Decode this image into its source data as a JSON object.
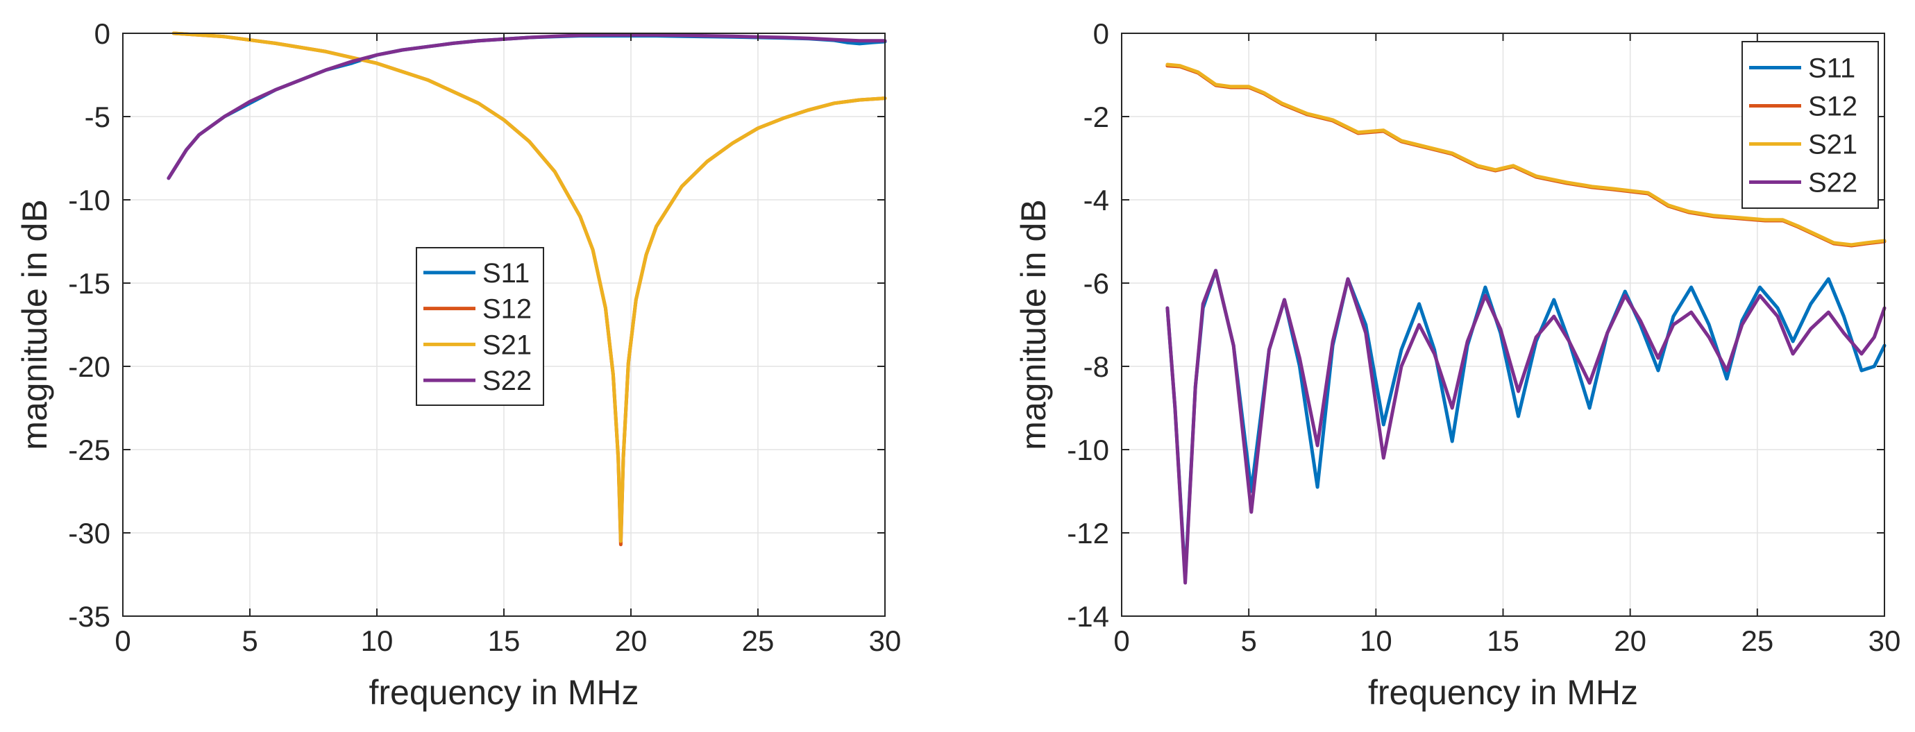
{
  "chart_data": [
    {
      "type": "line",
      "id": "left",
      "xlabel": "frequency in MHz",
      "ylabel": "magnitude in dB",
      "xlim": [
        0,
        30
      ],
      "ylim": [
        -35,
        0
      ],
      "xticks": [
        0,
        5,
        10,
        15,
        20,
        25,
        30
      ],
      "yticks": [
        0,
        -5,
        -10,
        -15,
        -20,
        -25,
        -30,
        -35
      ],
      "grid": true,
      "legend_position": "center",
      "series": [
        {
          "name": "S11",
          "color": "#0072BD",
          "x": [
            1.8,
            2.5,
            3,
            4,
            5,
            6,
            7,
            8,
            9,
            10,
            11,
            12,
            13,
            14,
            15,
            16,
            17,
            18,
            19,
            20,
            21,
            22,
            23,
            24,
            25,
            26,
            27,
            28,
            28.5,
            29,
            29.5,
            30
          ],
          "y": [
            -8.7,
            -7.0,
            -6.1,
            -5.0,
            -4.2,
            -3.4,
            -2.8,
            -2.2,
            -1.8,
            -1.3,
            -1.0,
            -0.8,
            -0.6,
            -0.45,
            -0.35,
            -0.25,
            -0.2,
            -0.15,
            -0.15,
            -0.15,
            -0.15,
            -0.18,
            -0.2,
            -0.22,
            -0.25,
            -0.28,
            -0.32,
            -0.42,
            -0.55,
            -0.62,
            -0.55,
            -0.5
          ]
        },
        {
          "name": "S12",
          "color": "#D95319",
          "x": [
            2,
            4,
            6,
            8,
            10,
            12,
            14,
            15,
            16,
            17,
            18,
            18.5,
            19,
            19.3,
            19.5,
            19.6,
            19.7,
            19.9,
            20.2,
            20.6,
            21,
            22,
            23,
            24,
            25,
            26,
            27,
            28,
            29,
            30
          ],
          "y": [
            0,
            -0.2,
            -0.6,
            -1.1,
            -1.8,
            -2.8,
            -4.2,
            -5.2,
            -6.5,
            -8.3,
            -11.0,
            -13.0,
            -16.5,
            -20.5,
            -25.5,
            -30.7,
            -25.5,
            -19.8,
            -16.0,
            -13.3,
            -11.6,
            -9.2,
            -7.7,
            -6.6,
            -5.7,
            -5.1,
            -4.6,
            -4.2,
            -4.0,
            -3.9
          ]
        },
        {
          "name": "S21",
          "color": "#EDB120",
          "x": [
            2,
            4,
            6,
            8,
            10,
            12,
            14,
            15,
            16,
            17,
            18,
            18.5,
            19,
            19.3,
            19.5,
            19.6,
            19.7,
            19.9,
            20.2,
            20.6,
            21,
            22,
            23,
            24,
            25,
            26,
            27,
            28,
            29,
            30
          ],
          "y": [
            0,
            -0.2,
            -0.6,
            -1.1,
            -1.8,
            -2.8,
            -4.2,
            -5.2,
            -6.5,
            -8.3,
            -11.0,
            -13.0,
            -16.5,
            -20.5,
            -25.5,
            -30.5,
            -25.5,
            -19.8,
            -16.0,
            -13.3,
            -11.6,
            -9.2,
            -7.7,
            -6.6,
            -5.7,
            -5.1,
            -4.6,
            -4.2,
            -4.0,
            -3.9
          ]
        },
        {
          "name": "S22",
          "color": "#7E2F8E",
          "x": [
            1.8,
            2.5,
            3,
            4,
            5,
            6,
            7,
            8,
            9,
            10,
            11,
            12,
            13,
            14,
            15,
            16,
            17,
            18,
            19,
            20,
            21,
            22,
            23,
            24,
            25,
            26,
            27,
            28,
            29,
            30
          ],
          "y": [
            -8.7,
            -7.0,
            -6.1,
            -5.0,
            -4.1,
            -3.4,
            -2.8,
            -2.2,
            -1.7,
            -1.3,
            -1.0,
            -0.8,
            -0.6,
            -0.45,
            -0.35,
            -0.25,
            -0.18,
            -0.12,
            -0.1,
            -0.1,
            -0.1,
            -0.12,
            -0.15,
            -0.18,
            -0.22,
            -0.25,
            -0.3,
            -0.38,
            -0.45,
            -0.45
          ]
        }
      ]
    },
    {
      "type": "line",
      "id": "right",
      "xlabel": "frequency in MHz",
      "ylabel": "magnitude in dB",
      "xlim": [
        0,
        30
      ],
      "ylim": [
        -14,
        0
      ],
      "xticks": [
        0,
        5,
        10,
        15,
        20,
        25,
        30
      ],
      "yticks": [
        0,
        -2,
        -4,
        -6,
        -8,
        -10,
        -12,
        -14
      ],
      "grid": true,
      "legend_position": "top-right",
      "series": [
        {
          "name": "S11",
          "color": "#0072BD",
          "x": [
            1.8,
            2.1,
            2.5,
            2.9,
            3.2,
            3.7,
            4.4,
            5.1,
            5.8,
            6.4,
            7.0,
            7.7,
            8.3,
            8.9,
            9.6,
            10.3,
            11.0,
            11.7,
            12.3,
            13.0,
            13.6,
            14.3,
            14.9,
            15.6,
            16.3,
            17.0,
            17.6,
            18.4,
            19.1,
            19.8,
            20.4,
            21.1,
            21.7,
            22.4,
            23.1,
            23.8,
            24.4,
            25.1,
            25.8,
            26.4,
            27.1,
            27.8,
            28.4,
            29.1,
            29.6,
            30
          ],
          "y": [
            -6.6,
            -9.0,
            -13.1,
            -8.5,
            -6.6,
            -5.7,
            -7.5,
            -11.0,
            -7.6,
            -6.4,
            -8.0,
            -10.9,
            -7.5,
            -5.9,
            -7.0,
            -9.4,
            -7.6,
            -6.5,
            -7.6,
            -9.8,
            -7.5,
            -6.1,
            -7.2,
            -9.2,
            -7.4,
            -6.4,
            -7.4,
            -9.0,
            -7.2,
            -6.2,
            -7.0,
            -8.1,
            -6.8,
            -6.1,
            -7.0,
            -8.3,
            -6.9,
            -6.1,
            -6.6,
            -7.4,
            -6.5,
            -5.9,
            -6.8,
            -8.1,
            -8.0,
            -7.5
          ]
        },
        {
          "name": "S12",
          "color": "#D95319",
          "x": [
            1.8,
            2.3,
            3,
            3.7,
            4.3,
            5.0,
            5.6,
            6.3,
            7.3,
            8.3,
            9.3,
            10.3,
            11.0,
            12.0,
            13.0,
            14.0,
            14.7,
            15.4,
            16.3,
            17.5,
            18.5,
            19.3,
            20.0,
            20.7,
            21.5,
            22.3,
            23.3,
            24.3,
            25.3,
            26.0,
            26.6,
            27.3,
            28.0,
            28.7,
            29.3,
            30
          ],
          "y": [
            -0.78,
            -0.8,
            -0.95,
            -1.25,
            -1.3,
            -1.3,
            -1.45,
            -1.7,
            -1.95,
            -2.1,
            -2.4,
            -2.35,
            -2.6,
            -2.75,
            -2.9,
            -3.2,
            -3.3,
            -3.2,
            -3.45,
            -3.6,
            -3.7,
            -3.75,
            -3.8,
            -3.85,
            -4.15,
            -4.3,
            -4.4,
            -4.45,
            -4.5,
            -4.5,
            -4.65,
            -4.85,
            -5.05,
            -5.1,
            -5.05,
            -5.0
          ]
        },
        {
          "name": "S21",
          "color": "#EDB120",
          "x": [
            1.8,
            2.3,
            3,
            3.7,
            4.3,
            5.0,
            5.6,
            6.3,
            7.3,
            8.3,
            9.3,
            10.3,
            11.0,
            12.0,
            13.0,
            14.0,
            14.7,
            15.4,
            16.3,
            17.5,
            18.5,
            19.3,
            20.0,
            20.7,
            21.5,
            22.3,
            23.3,
            24.3,
            25.3,
            26.0,
            26.6,
            27.3,
            28.0,
            28.7,
            29.3,
            30
          ],
          "y": [
            -0.75,
            -0.78,
            -0.93,
            -1.23,
            -1.28,
            -1.28,
            -1.43,
            -1.68,
            -1.93,
            -2.08,
            -2.38,
            -2.33,
            -2.58,
            -2.73,
            -2.88,
            -3.18,
            -3.28,
            -3.18,
            -3.43,
            -3.58,
            -3.68,
            -3.73,
            -3.78,
            -3.83,
            -4.13,
            -4.28,
            -4.38,
            -4.43,
            -4.48,
            -4.48,
            -4.63,
            -4.83,
            -5.03,
            -5.08,
            -5.03,
            -4.98
          ]
        },
        {
          "name": "S22",
          "color": "#7E2F8E",
          "x": [
            1.8,
            2.1,
            2.5,
            2.9,
            3.2,
            3.7,
            4.4,
            5.1,
            5.8,
            6.4,
            7.0,
            7.7,
            8.3,
            8.9,
            9.6,
            10.3,
            11.0,
            11.7,
            12.3,
            13.0,
            13.6,
            14.3,
            14.9,
            15.6,
            16.3,
            17.0,
            17.6,
            18.4,
            19.1,
            19.8,
            20.4,
            21.1,
            21.7,
            22.4,
            23.1,
            23.8,
            24.4,
            25.1,
            25.8,
            26.4,
            27.1,
            27.8,
            28.4,
            29.1,
            29.6,
            30
          ],
          "y": [
            -6.6,
            -9.0,
            -13.2,
            -8.5,
            -6.5,
            -5.7,
            -7.5,
            -11.5,
            -7.6,
            -6.4,
            -7.8,
            -9.9,
            -7.4,
            -5.9,
            -7.2,
            -10.2,
            -8.0,
            -7.0,
            -7.7,
            -9.0,
            -7.4,
            -6.3,
            -7.1,
            -8.6,
            -7.3,
            -6.8,
            -7.4,
            -8.4,
            -7.2,
            -6.3,
            -6.9,
            -7.8,
            -7.0,
            -6.7,
            -7.3,
            -8.1,
            -7.0,
            -6.3,
            -6.8,
            -7.7,
            -7.1,
            -6.7,
            -7.2,
            -7.7,
            -7.3,
            -6.6
          ]
        }
      ]
    }
  ]
}
